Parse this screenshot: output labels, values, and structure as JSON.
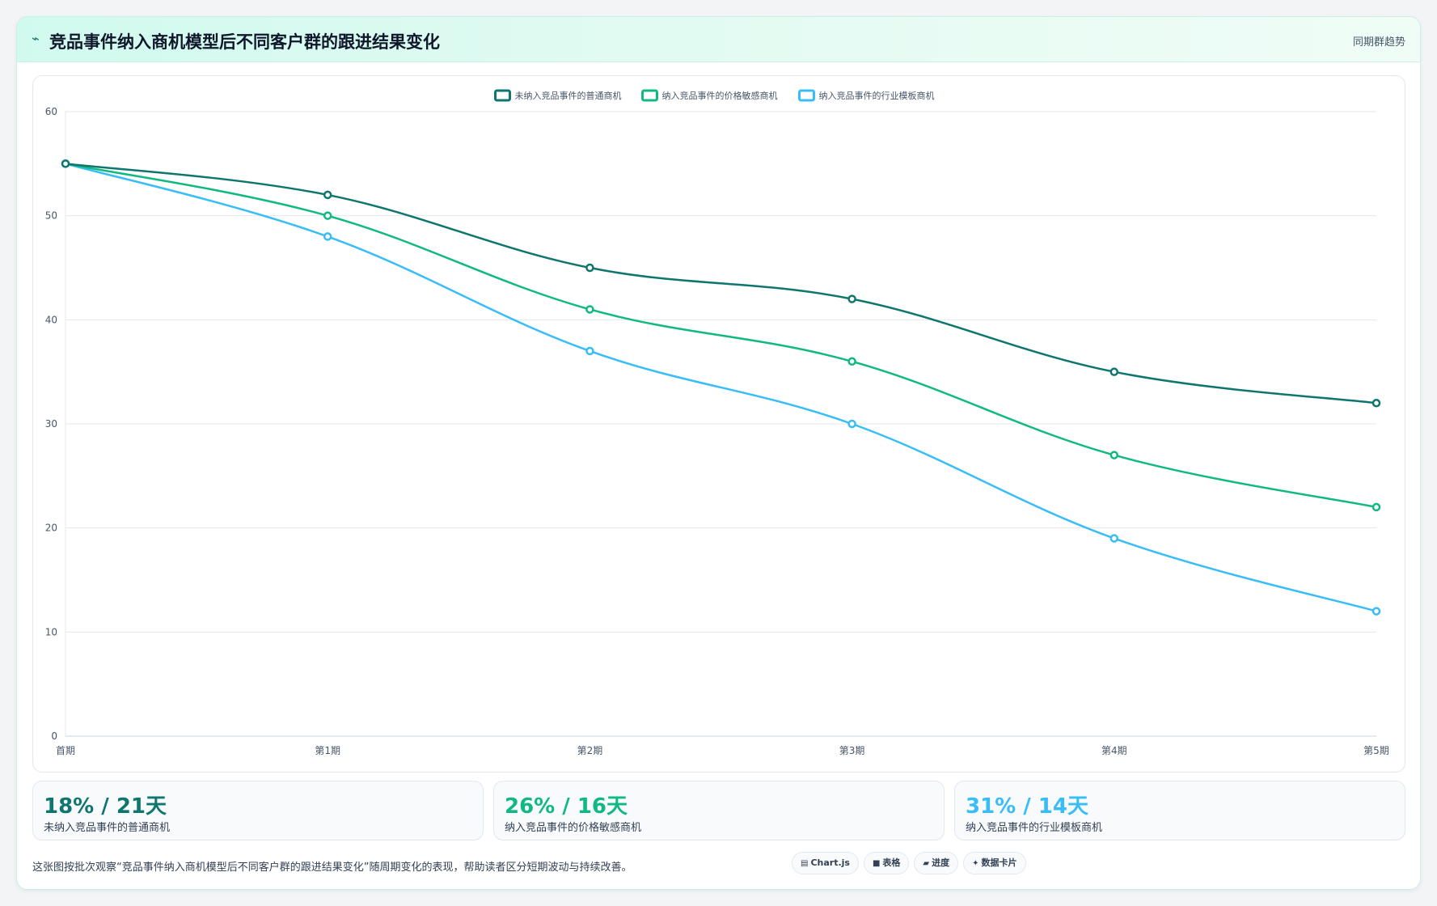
{
  "header": {
    "icon": "trend-line-icon",
    "title": "竞品事件纳入商机模型后不同客户群的跟进结果变化",
    "tag": "同期群趋势"
  },
  "chart_data": {
    "type": "line",
    "title": "",
    "xlabel": "",
    "ylabel": "",
    "categories": [
      "首期",
      "第1期",
      "第2期",
      "第3期",
      "第4期",
      "第5期"
    ],
    "ylim": [
      0,
      60
    ],
    "yticks": [
      0,
      10,
      20,
      30,
      40,
      50,
      60
    ],
    "grid": true,
    "legend_position": "top-center",
    "series": [
      {
        "name": "未纳入竞品事件的普通商机",
        "color": "#0f766e",
        "values": [
          55,
          52,
          45,
          42,
          35,
          32
        ]
      },
      {
        "name": "纳入竞品事件的价格敏感商机",
        "color": "#10b981",
        "values": [
          55,
          50,
          41,
          36,
          27,
          22
        ]
      },
      {
        "name": "纳入竞品事件的行业模板商机",
        "color": "#38bdf8",
        "values": [
          55,
          48,
          37,
          30,
          19,
          12
        ]
      }
    ]
  },
  "stats": [
    {
      "value": "18% / 21天",
      "label": "未纳入竞品事件的普通商机",
      "color": "#0f766e"
    },
    {
      "value": "26% / 16天",
      "label": "纳入竞品事件的价格敏感商机",
      "color": "#10b981"
    },
    {
      "value": "31% / 14天",
      "label": "纳入竞品事件的行业模板商机",
      "color": "#38bdf8"
    }
  ],
  "footnote": "这张图按批次观察“竞品事件纳入商机模型后不同客户群的跟进结果变化”随周期变化的表现，帮助读者区分短期波动与持续改善。",
  "tags": [
    {
      "icon": "chart-icon",
      "glyph": "▤",
      "label": "Chart.js"
    },
    {
      "icon": "table-icon",
      "glyph": "■",
      "label": "表格"
    },
    {
      "icon": "progress-icon",
      "glyph": "▰",
      "label": "进度"
    },
    {
      "icon": "sparkle-icon",
      "glyph": "✦",
      "label": "数据卡片"
    }
  ]
}
